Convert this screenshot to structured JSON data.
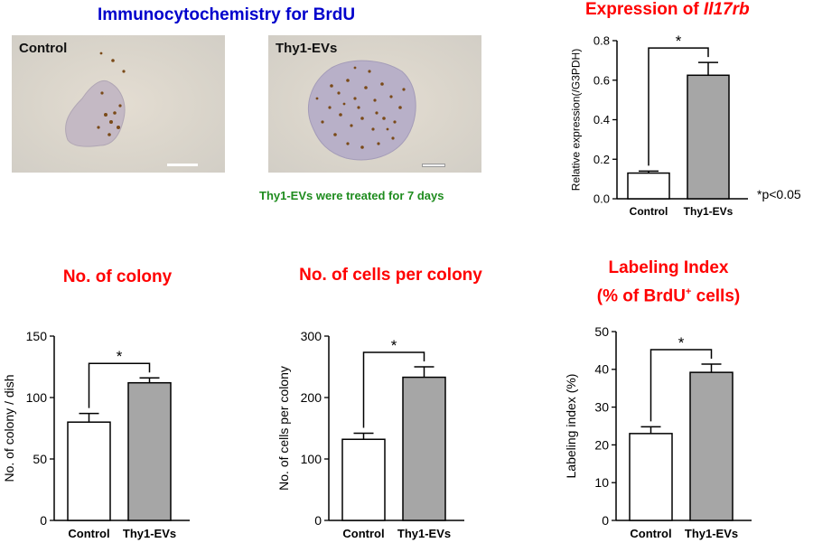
{
  "header": {
    "icc_title": "Immunocytochemistry for BrdU",
    "treatment_note": "Thy1-EVs were treated for 7 days",
    "pvalue_note": "*p<0.05"
  },
  "micrographs": [
    {
      "label": "Control"
    },
    {
      "label": "Thy1-EVs"
    }
  ],
  "panel_titles": {
    "il17rb_prefix": "Expression of ",
    "il17rb_gene": "Il17rb",
    "colony": "No. of colony",
    "cells_per_colony": "No. of cells per colony",
    "labeling_line1": "Labeling Index",
    "labeling_line2_a": "(% of BrdU",
    "labeling_line2_sup": "+",
    "labeling_line2_b": " cells)"
  },
  "colors": {
    "title_red": "#ff0000",
    "title_blue": "#0000cc",
    "note_green": "#1e8c1e",
    "bar_control": "#ffffff",
    "bar_treated": "#a6a6a6"
  },
  "chart_data": [
    {
      "id": "il17rb",
      "type": "bar",
      "categories": [
        "Control",
        "Thy1-EVs"
      ],
      "values": [
        0.13,
        0.625
      ],
      "errors": [
        0.01,
        0.065
      ],
      "ylabel": "Relative expression(/G3PDH)",
      "ylim": [
        0,
        0.8
      ],
      "yticks": [
        0.0,
        0.2,
        0.4,
        0.6,
        0.8
      ],
      "ytick_labels": [
        "0.0",
        "0.2",
        "0.4",
        "0.6",
        "0.8"
      ],
      "significance": "*"
    },
    {
      "id": "colony",
      "type": "bar",
      "categories": [
        "Control",
        "Thy1-EVs"
      ],
      "values": [
        80,
        112
      ],
      "errors": [
        7,
        4
      ],
      "ylabel": "No. of colony / dish",
      "ylim": [
        0,
        150
      ],
      "yticks": [
        0,
        50,
        100,
        150
      ],
      "ytick_labels": [
        "0",
        "50",
        "100",
        "150"
      ],
      "significance": "*"
    },
    {
      "id": "cells",
      "type": "bar",
      "categories": [
        "Control",
        "Thy1-EVs"
      ],
      "values": [
        132,
        233
      ],
      "errors": [
        10,
        17
      ],
      "ylabel": "No. of cells per colony",
      "ylim": [
        0,
        300
      ],
      "yticks": [
        0,
        100,
        200,
        300
      ],
      "ytick_labels": [
        "0",
        "100",
        "200",
        "300"
      ],
      "significance": "*"
    },
    {
      "id": "labeling",
      "type": "bar",
      "categories": [
        "Control",
        "Thy1-EVs"
      ],
      "values": [
        23,
        39.2
      ],
      "errors": [
        1.8,
        2.2
      ],
      "ylabel": "Labeling index (%)",
      "ylim": [
        0,
        50
      ],
      "yticks": [
        0,
        10,
        20,
        30,
        40,
        50
      ],
      "ytick_labels": [
        "0",
        "10",
        "20",
        "30",
        "40",
        "50"
      ],
      "significance": "*"
    }
  ]
}
